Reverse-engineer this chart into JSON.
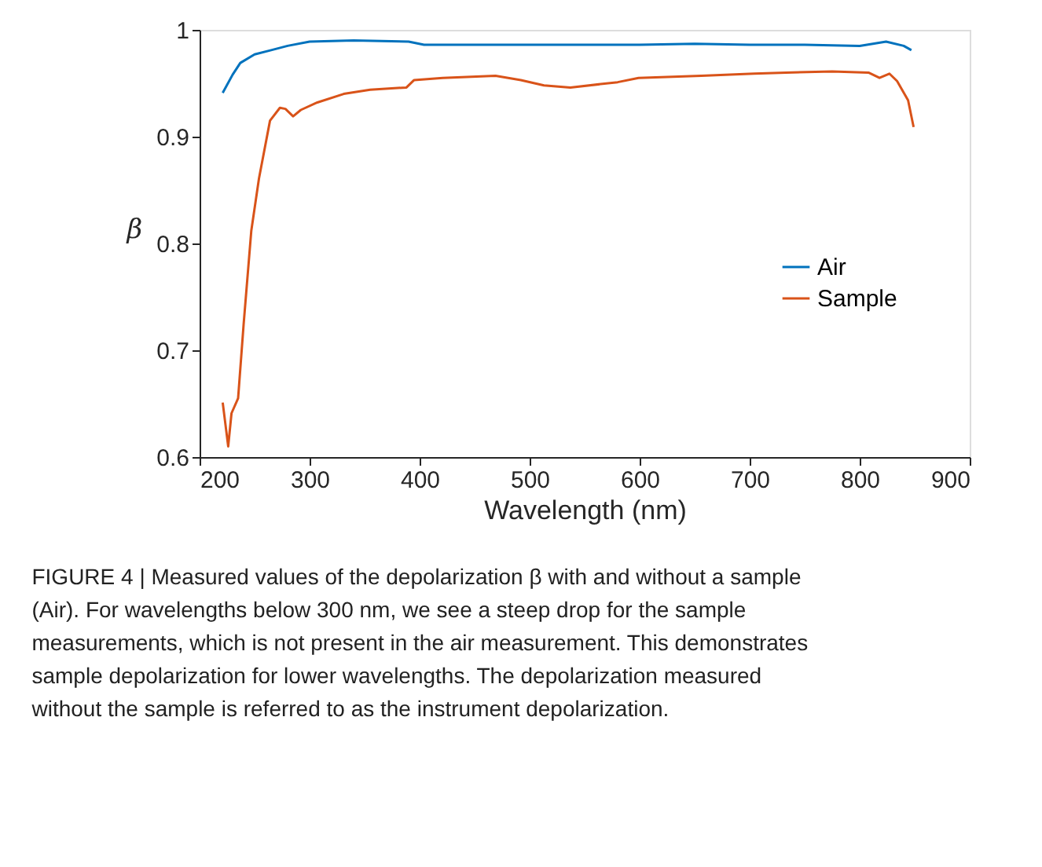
{
  "chart_data": {
    "type": "line",
    "xlabel": "Wavelength (nm)",
    "ylabel": "β",
    "xlim": [
      200,
      900
    ],
    "xticks": [
      200,
      300,
      400,
      500,
      600,
      700,
      800,
      900
    ],
    "ylim": [
      0.6,
      1.0
    ],
    "yticks": [
      0.6,
      0.7,
      0.8,
      0.9,
      {
        "value": 1.0,
        "label": "1"
      }
    ],
    "grid": false,
    "legend": "right",
    "line_style": "solid",
    "marker": "none",
    "series": [
      {
        "name": "Air",
        "color": "#0072bd",
        "x": [
          221,
          230,
          237,
          250,
          265,
          280,
          300,
          340,
          390,
          404,
          450,
          500,
          550,
          600,
          650,
          700,
          750,
          800,
          824,
          840,
          847
        ],
        "values": [
          0.941,
          0.958,
          0.969,
          0.977,
          0.981,
          0.985,
          0.989,
          0.99,
          0.989,
          0.986,
          0.986,
          0.986,
          0.986,
          0.986,
          0.987,
          0.986,
          0.986,
          0.985,
          0.989,
          0.985,
          0.981
        ]
      },
      {
        "name": "Sample",
        "color": "#d95319",
        "x": [
          221,
          226,
          229,
          235,
          240,
          247,
          254,
          264,
          273,
          278,
          285,
          292,
          307,
          331,
          355,
          388,
          395,
          421,
          469,
          492,
          513,
          537,
          580,
          599,
          656,
          704,
          733,
          775,
          808,
          818,
          827,
          834,
          844,
          849
        ],
        "values": [
          0.651,
          0.61,
          0.641,
          0.655,
          0.724,
          0.812,
          0.861,
          0.915,
          0.927,
          0.926,
          0.919,
          0.925,
          0.932,
          0.94,
          0.944,
          0.946,
          0.953,
          0.955,
          0.957,
          0.953,
          0.948,
          0.946,
          0.951,
          0.955,
          0.957,
          0.959,
          0.96,
          0.961,
          0.96,
          0.955,
          0.959,
          0.952,
          0.934,
          0.909
        ]
      }
    ],
    "annotations": [
      "FIGURE 4 | Measured values of the depolarization β with and without a sample (Air). For wavelengths below 300 nm, we see a steep drop for the sample measurements, which is not present in the air measurement. This demonstrates sample depolarization for lower wavelengths. The depolarization measured without the sample is referred to as the instrument depolarization."
    ]
  }
}
